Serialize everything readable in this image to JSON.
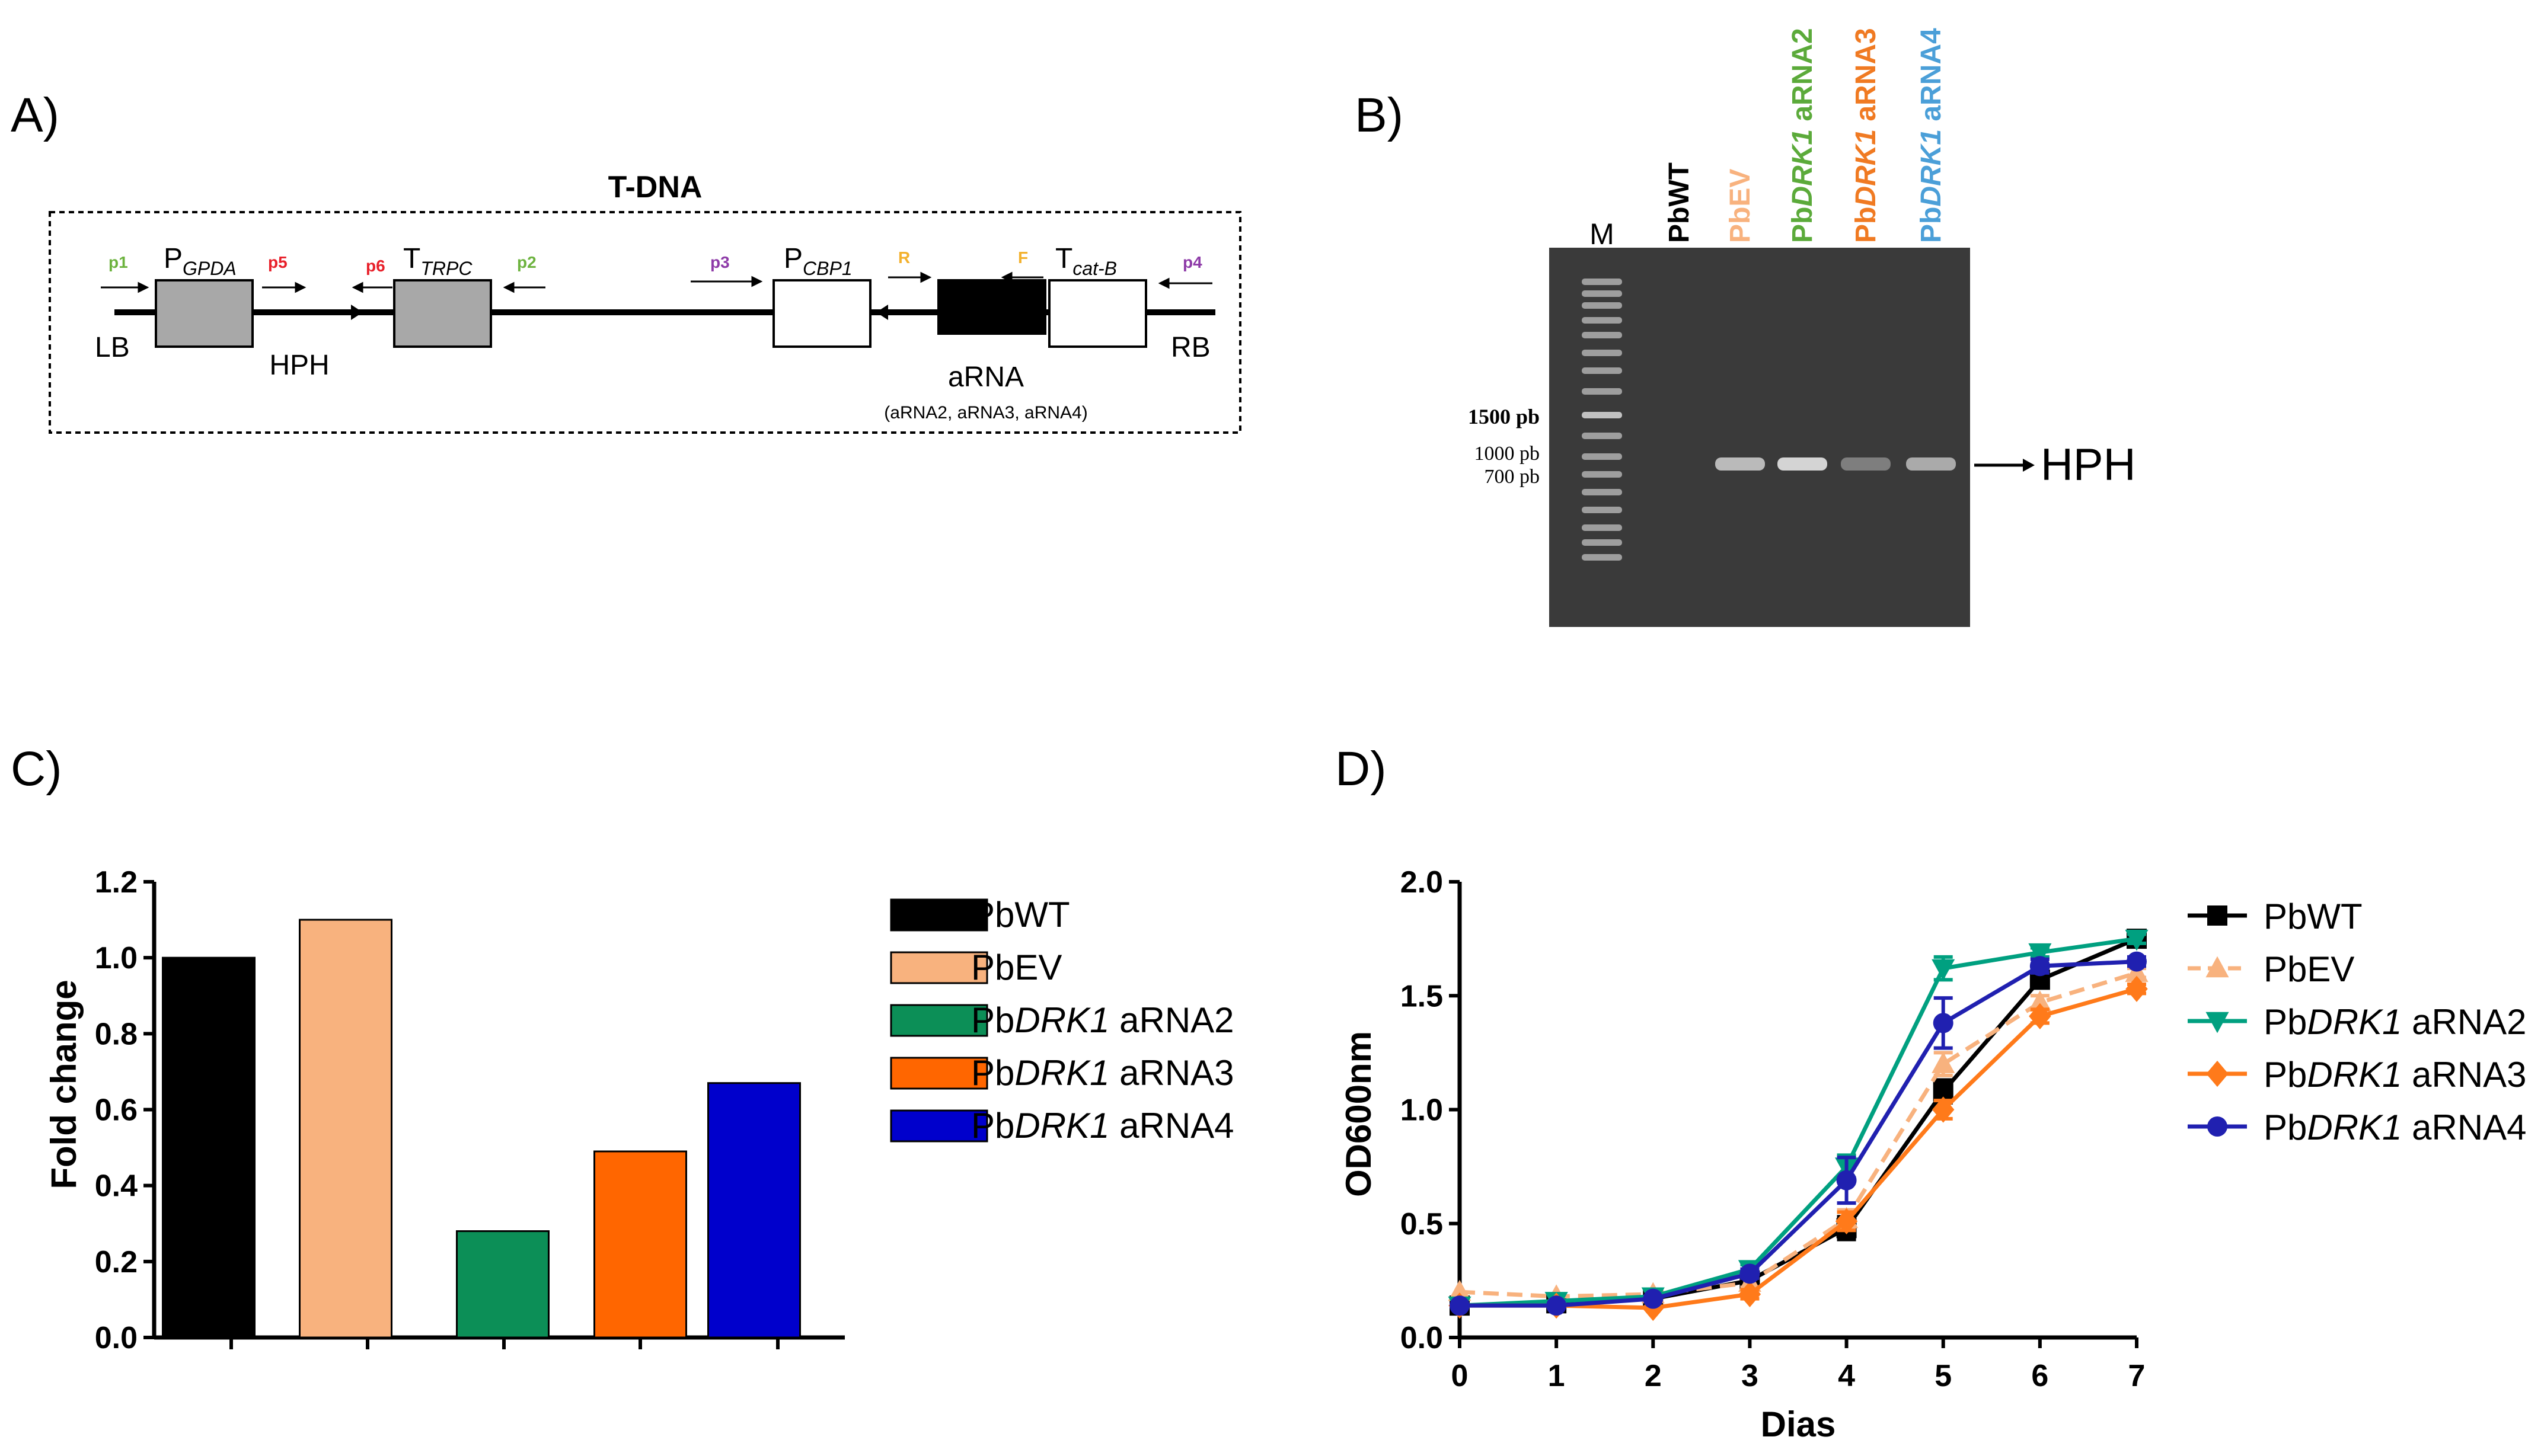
{
  "panels": {
    "a": "A)",
    "b": "B)",
    "c": "C)",
    "d": "D)"
  },
  "colors": {
    "pbwt": "#000000",
    "pbev": "#F8B27E",
    "arna2_bar": "#0C8F57",
    "arna3_bar": "#FF6600",
    "arna4_bar": "#0000CC",
    "arna2_line": "#00A080",
    "arna3_line": "#FF7A1A",
    "arna4_line": "#2020B0",
    "gel_bg": "#3a3a3a",
    "primer_green": "#6DB33F",
    "primer_red": "#E8202A",
    "primer_purple": "#8E3BA8",
    "primer_yellow": "#F3B12D",
    "lane_green": "#5BAA3A",
    "lane_orange": "#F07A22",
    "lane_blue": "#4B9FD8"
  },
  "tdna": {
    "title": "T-DNA",
    "lb": "LB",
    "rb": "RB",
    "hph": "HPH",
    "p_gpda": "P",
    "p_gpda_sub": "GPDA",
    "t_trpc": "T",
    "t_trpc_sub": "TRPC",
    "p_cbp1": "P",
    "p_cbp1_sub": "CBP1",
    "t_catb": "T",
    "t_catb_sub": "cat-B",
    "arna": "aRNA",
    "arna_note": "(aRNA2, aRNA3, aRNA4)",
    "primers": [
      "p1",
      "p5",
      "p6",
      "p2",
      "p3",
      "R",
      "F",
      "p4"
    ]
  },
  "gel": {
    "marker": "M",
    "lanes": [
      {
        "pre": "PbWT",
        "ital": "",
        "post": ""
      },
      {
        "pre": "PbEV",
        "ital": "",
        "post": ""
      },
      {
        "pre": "Pb",
        "ital": "DRK1",
        "post": " aRNA2"
      },
      {
        "pre": "Pb",
        "ital": "DRK1",
        "post": " aRNA3"
      },
      {
        "pre": "Pb",
        "ital": "DRK1",
        "post": " aRNA4"
      }
    ],
    "size_1500": "1500 pb",
    "size_1000": "1000 pb",
    "size_700": "700 pb",
    "band_label": "HPH"
  },
  "legend_c": [
    {
      "pre": "PbWT",
      "ital": "",
      "post": ""
    },
    {
      "pre": "PbEV",
      "ital": "",
      "post": ""
    },
    {
      "pre": "Pb",
      "ital": "DRK1",
      "post": " aRNA2"
    },
    {
      "pre": "Pb",
      "ital": "DRK1",
      "post": " aRNA3"
    },
    {
      "pre": "Pb",
      "ital": "DRK1",
      "post": " aRNA4"
    }
  ],
  "legend_d": [
    {
      "pre": "PbWT",
      "ital": "",
      "post": ""
    },
    {
      "pre": "PbEV",
      "ital": "",
      "post": ""
    },
    {
      "pre": "Pb",
      "ital": "DRK1",
      "post": " aRNA2"
    },
    {
      "pre": "Pb",
      "ital": "DRK1",
      "post": " aRNA3"
    },
    {
      "pre": "Pb",
      "ital": "DRK1",
      "post": " aRNA4"
    }
  ],
  "chart_data": [
    {
      "type": "bar",
      "panel": "C",
      "categories": [
        "PbWT",
        "PbEV",
        "PbDRK1 aRNA2",
        "PbDRK1 aRNA3",
        "PbDRK1 aRNA4"
      ],
      "values": [
        1.0,
        1.1,
        0.28,
        0.49,
        0.67
      ],
      "ylabel": "Fold change",
      "xlabel": "",
      "ylim": [
        0,
        1.2
      ],
      "yticks": [
        "0.0",
        "0.2",
        "0.4",
        "0.6",
        "0.8",
        "1.0",
        "1.2"
      ]
    },
    {
      "type": "line",
      "panel": "D",
      "x": [
        0,
        1,
        2,
        3,
        4,
        5,
        6,
        7
      ],
      "xticks": [
        "0",
        "1",
        "2",
        "3",
        "4",
        "5",
        "6",
        "7"
      ],
      "yticks": [
        "0.0",
        "0.5",
        "1.0",
        "1.5",
        "2.0"
      ],
      "xlabel": "Dias",
      "ylabel": "OD600nm",
      "xlim": [
        0,
        7
      ],
      "ylim": [
        0,
        2.0
      ],
      "series": [
        {
          "name": "PbWT",
          "marker": "square",
          "values": [
            0.14,
            0.15,
            0.17,
            0.25,
            0.48,
            1.08,
            1.57,
            1.75
          ],
          "err": [
            0.01,
            0.01,
            0.01,
            0.02,
            0.05,
            0.05,
            0.03,
            0.02
          ]
        },
        {
          "name": "PbEV",
          "marker": "triangle-up",
          "dashed": true,
          "values": [
            0.2,
            0.18,
            0.19,
            0.24,
            0.52,
            1.2,
            1.47,
            1.6
          ],
          "err": [
            0.01,
            0.01,
            0.01,
            0.02,
            0.04,
            0.05,
            0.03,
            0.02
          ]
        },
        {
          "name": "PbDRK1 aRNA2",
          "marker": "triangle-down",
          "values": [
            0.14,
            0.16,
            0.18,
            0.3,
            0.75,
            1.62,
            1.69,
            1.75
          ],
          "err": [
            0.01,
            0.01,
            0.01,
            0.02,
            0.05,
            0.05,
            0.02,
            0.02
          ]
        },
        {
          "name": "PbDRK1 aRNA3",
          "marker": "diamond",
          "values": [
            0.14,
            0.14,
            0.13,
            0.19,
            0.51,
            1.0,
            1.41,
            1.53
          ],
          "err": [
            0.01,
            0.01,
            0.01,
            0.02,
            0.04,
            0.04,
            0.03,
            0.02
          ]
        },
        {
          "name": "PbDRK1 aRNA4",
          "marker": "circle",
          "values": [
            0.14,
            0.14,
            0.17,
            0.28,
            0.69,
            1.38,
            1.63,
            1.65
          ],
          "err": [
            0.01,
            0.01,
            0.01,
            0.02,
            0.1,
            0.11,
            0.03,
            0.02
          ]
        }
      ]
    }
  ]
}
